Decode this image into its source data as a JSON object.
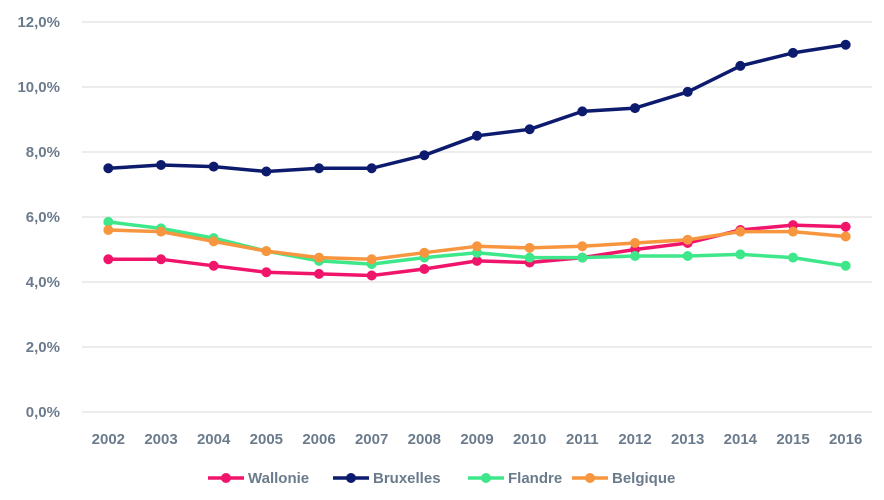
{
  "chart_data": {
    "type": "line",
    "title": "",
    "xlabel": "",
    "ylabel": "",
    "x": [
      "2002",
      "2003",
      "2004",
      "2005",
      "2006",
      "2007",
      "2008",
      "2009",
      "2010",
      "2011",
      "2012",
      "2013",
      "2014",
      "2015",
      "2016"
    ],
    "ylim": [
      0,
      12
    ],
    "yticks": [
      "0,0%",
      "2,0%",
      "4,0%",
      "6,0%",
      "8,0%",
      "10,0%",
      "12,0%"
    ],
    "grid": "horizontal",
    "legend_position": "bottom",
    "series": [
      {
        "name": "Wallonie",
        "color": "#f0156b",
        "values": [
          4.7,
          4.7,
          4.5,
          4.3,
          4.25,
          4.2,
          4.4,
          4.65,
          4.6,
          4.75,
          5.0,
          5.2,
          5.6,
          5.75,
          5.7
        ]
      },
      {
        "name": "Bruxelles",
        "color": "#0d1b6e",
        "values": [
          7.5,
          7.6,
          7.55,
          7.4,
          7.5,
          7.5,
          7.9,
          8.5,
          8.7,
          9.25,
          9.35,
          9.85,
          10.65,
          11.05,
          11.3
        ]
      },
      {
        "name": "Flandre",
        "color": "#3ee88a",
        "values": [
          5.85,
          5.65,
          5.35,
          4.95,
          4.65,
          4.55,
          4.75,
          4.9,
          4.75,
          4.75,
          4.8,
          4.8,
          4.85,
          4.75,
          4.5
        ]
      },
      {
        "name": "Belgique",
        "color": "#f7963e",
        "values": [
          5.6,
          5.55,
          5.25,
          4.95,
          4.75,
          4.7,
          4.9,
          5.1,
          5.05,
          5.1,
          5.2,
          5.3,
          5.55,
          5.55,
          5.4
        ]
      }
    ]
  }
}
